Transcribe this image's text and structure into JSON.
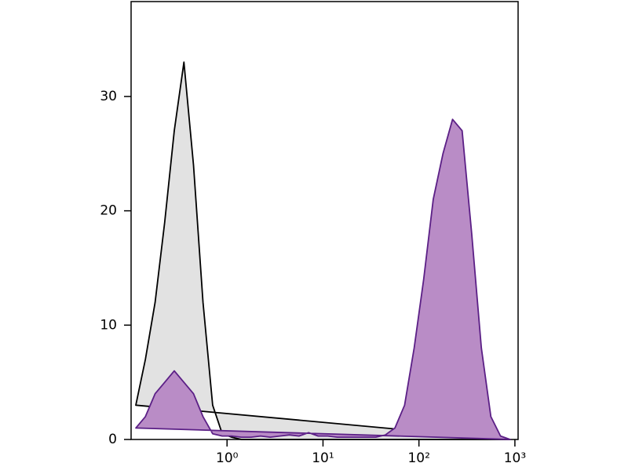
{
  "chart_data": {
    "type": "histogram-overlay",
    "x": [
      0.112,
      0.141,
      0.178,
      0.224,
      0.282,
      0.355,
      0.447,
      0.562,
      0.708,
      0.891,
      1.12,
      1.41,
      1.78,
      2.24,
      2.82,
      3.55,
      4.47,
      5.62,
      7.08,
      8.91,
      11.2,
      14.1,
      17.8,
      22.4,
      28.2,
      35.5,
      44.7,
      56.2,
      70.8,
      89.1,
      112,
      141,
      178,
      224,
      282,
      355,
      447,
      562,
      708,
      891
    ],
    "series": [
      {
        "color": "#000000",
        "fill": "#e2e2e2",
        "values": [
          3,
          7,
          12,
          19,
          27,
          33,
          24,
          12,
          3,
          0.5,
          0.2,
          0,
          0,
          0,
          0,
          0,
          0,
          0,
          0,
          0,
          0,
          0,
          0,
          0,
          0,
          0,
          0,
          0,
          0,
          0,
          0,
          0,
          0,
          0,
          0,
          0,
          0,
          0,
          0,
          0
        ]
      },
      {
        "color": "#5b1f86",
        "fill": "#b98cc6",
        "values": [
          1,
          2,
          4,
          5,
          6,
          5,
          4,
          2,
          0.5,
          0.3,
          0.3,
          0.2,
          0.2,
          0.3,
          0.2,
          0.3,
          0.4,
          0.3,
          0.6,
          0.3,
          0.3,
          0.2,
          0.2,
          0.2,
          0.2,
          0.2,
          0.4,
          1,
          3,
          8,
          14,
          21,
          25,
          28,
          27,
          18,
          8,
          2,
          0.3,
          0
        ]
      }
    ],
    "xscale": "log",
    "xlim": [
      0.1,
      1080
    ],
    "xticks": [
      {
        "value": 1,
        "label": "10⁰"
      },
      {
        "value": 10,
        "label": "10¹"
      },
      {
        "value": 100,
        "label": "10²"
      },
      {
        "value": 1000,
        "label": "10³"
      }
    ],
    "ylim": [
      0,
      38.3
    ],
    "yticks": [
      0,
      10,
      20,
      30
    ]
  }
}
